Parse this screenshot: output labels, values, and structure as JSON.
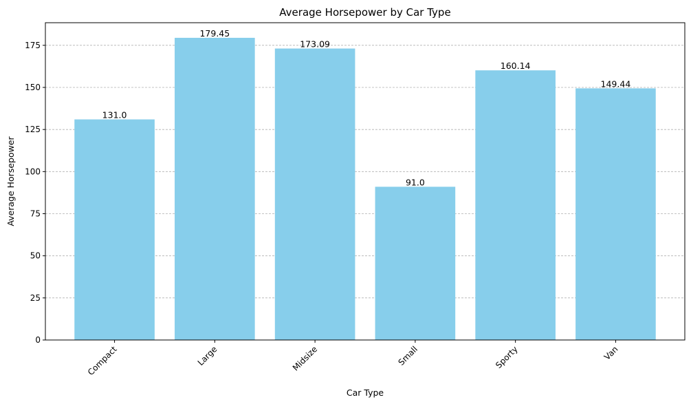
{
  "chart_data": {
    "type": "bar",
    "title": "Average Horsepower by Car Type",
    "xlabel": "Car Type",
    "ylabel": "Average Horsepower",
    "categories": [
      "Compact",
      "Large",
      "Midsize",
      "Small",
      "Sporty",
      "Van"
    ],
    "values": [
      131.0,
      179.45,
      173.09,
      91.0,
      160.14,
      149.44
    ],
    "value_labels": [
      "131.0",
      "179.45",
      "173.09",
      "91.0",
      "160.14",
      "149.44"
    ],
    "ylim": [
      0,
      188.42
    ],
    "yticks": [
      0,
      25,
      50,
      75,
      100,
      125,
      150,
      175
    ],
    "grid": "y-dashed",
    "bar_color": "#87ceeb",
    "grid_color": "#b0b0b0",
    "x_tick_rotation": 45
  }
}
